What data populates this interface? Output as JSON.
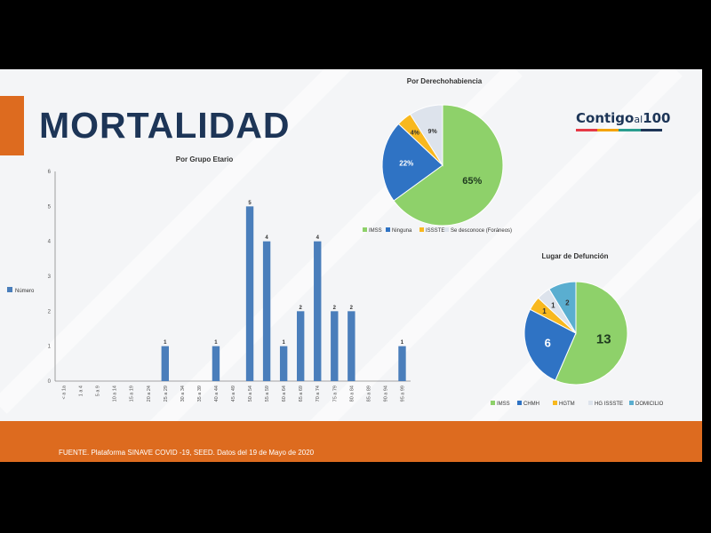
{
  "slide_title": "MORTALIDAD",
  "logo": {
    "text_main": "Contigo",
    "text_al": "al",
    "text_num": "100",
    "colors": [
      "#e63946",
      "#f4a300",
      "#2a9d8f",
      "#1d3557"
    ]
  },
  "source": "FUENTE. Plataforma SINAVE COVID -19, SEED. Datos del 19 de Mayo de 2020",
  "colors": {
    "orange": "#dd6b1f",
    "navy": "#1d3557",
    "bar_blue": "#4a7ebb"
  },
  "chart_data": [
    {
      "type": "bar",
      "title": "Por Grupo Etario",
      "categories": [
        "< a 1a",
        "1 a 4",
        "5 a 9",
        "10 a 14",
        "15 a 19",
        "20 a 24",
        "25 a 29",
        "30 a 34",
        "35 a 39",
        "40 a 44",
        "45 a 49",
        "50 a 54",
        "55 a 59",
        "60 a 64",
        "65 a 69",
        "70 a 74",
        "75 a 79",
        "80 a 84",
        "85 a 89",
        "90 a 94",
        "95 a 99"
      ],
      "series": [
        {
          "name": "Número",
          "values": [
            0,
            0,
            0,
            0,
            0,
            0,
            1,
            0,
            0,
            1,
            0,
            5,
            4,
            1,
            2,
            4,
            2,
            2,
            0,
            0,
            1
          ]
        }
      ],
      "ylim": [
        0,
        6
      ],
      "yticks": [
        "0",
        "1",
        "2",
        "3",
        "4",
        "5",
        "6"
      ],
      "legend_position": "left",
      "color": "#4a7ebb"
    },
    {
      "type": "pie",
      "title": "Por Derechohabiencia",
      "labels": [
        "IMSS",
        "Ninguna",
        "ISSSTE",
        "Se desconoce (Foráneos)"
      ],
      "values": [
        65,
        22,
        4,
        9
      ],
      "value_labels": [
        "65%",
        "22%",
        "4%",
        "9%"
      ],
      "colors": [
        "#8ed16a",
        "#2f73c4",
        "#f8b81e",
        "#dde3ec"
      ],
      "legend_position": "bottom"
    },
    {
      "type": "pie",
      "title": "Lugar de Defunción",
      "labels": [
        "IMSS",
        "CHMH",
        "HGTM",
        "HG ISSSTE",
        "DOMICILIO"
      ],
      "values": [
        13,
        6,
        1,
        1,
        2
      ],
      "value_labels": [
        "13",
        "6",
        "1",
        "1",
        "2"
      ],
      "colors": [
        "#8ed16a",
        "#2f73c4",
        "#f8b81e",
        "#dde3ec",
        "#5aaed0"
      ],
      "legend_position": "bottom"
    }
  ]
}
